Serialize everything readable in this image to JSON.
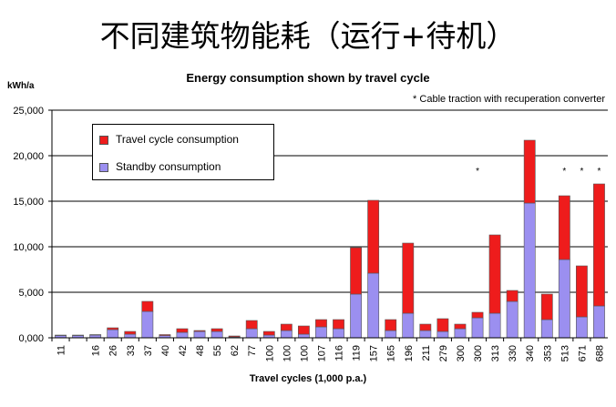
{
  "slide": {
    "title": "不同建筑物能耗（运行+待机）"
  },
  "colors": {
    "travel": "#ee1c1c",
    "standby": "#9b8ff0",
    "edge": "#555555",
    "grid": "#000000"
  },
  "chart_data": {
    "type": "bar",
    "stacked": true,
    "title": "Energy consumption shown by travel cycle",
    "ylabel": "kWh/a",
    "xlabel": "Travel cycles (1,000 p.a.)",
    "footnote": "* Cable traction with recuperation converter",
    "ylim": [
      0,
      25000
    ],
    "yticks": [
      "0,000",
      "5,000",
      "10,000",
      "15,000",
      "20,000",
      "25,000"
    ],
    "grid": true,
    "legend_position": "top-left",
    "categories": [
      "11",
      "",
      "16",
      "26",
      "33",
      "37",
      "40",
      "42",
      "48",
      "55",
      "62",
      "77",
      "100",
      "100",
      "100",
      "107",
      "116",
      "119",
      "157",
      "165",
      "196",
      "211",
      "279",
      "300",
      "300",
      "313",
      "330",
      "340",
      "353",
      "513",
      "671",
      "688"
    ],
    "asterisks": [
      "",
      "",
      "",
      "",
      "",
      "",
      "",
      "",
      "",
      "",
      "",
      "",
      "",
      "",
      "",
      "",
      "",
      "",
      "",
      "",
      "",
      "",
      "",
      "",
      "*",
      "",
      "",
      "",
      "",
      "*",
      "*",
      "*"
    ],
    "series": [
      {
        "name": "Standby consumption",
        "values": [
          250,
          250,
          300,
          900,
          400,
          2900,
          250,
          600,
          700,
          700,
          100,
          1000,
          300,
          800,
          400,
          1200,
          1000,
          4800,
          7100,
          800,
          2700,
          800,
          700,
          1000,
          2200,
          2700,
          4000,
          14800,
          2000,
          8600,
          2300,
          3500
        ]
      },
      {
        "name": "Travel cycle consumption",
        "values": [
          50,
          50,
          50,
          200,
          300,
          1100,
          100,
          400,
          100,
          300,
          100,
          900,
          400,
          700,
          900,
          800,
          1000,
          5100,
          8000,
          1200,
          7700,
          700,
          1400,
          500,
          600,
          8600,
          1200,
          6900,
          2800,
          7000,
          5600,
          13400
        ]
      }
    ],
    "legend": [
      "Travel cycle consumption",
      "Standby consumption"
    ]
  }
}
